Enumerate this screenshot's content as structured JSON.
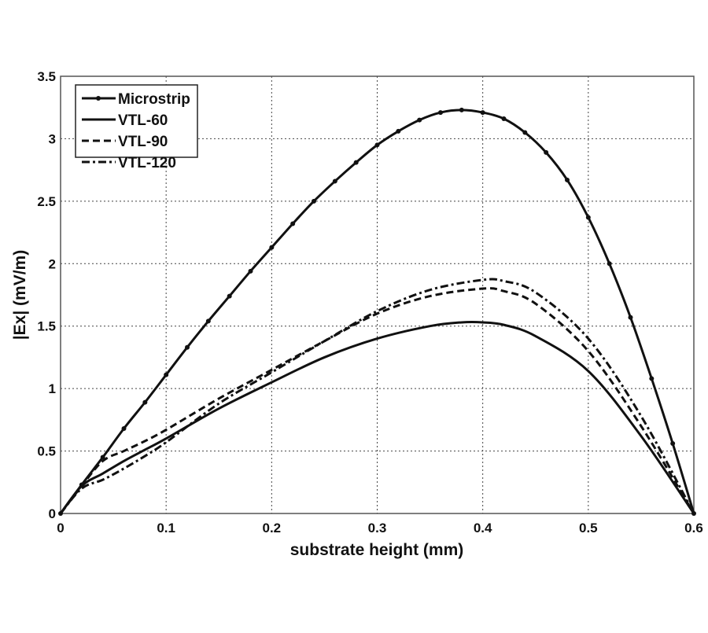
{
  "chart_data": {
    "type": "line",
    "title": "",
    "xlabel": "substrate height (mm)",
    "ylabel": "|Ex| (mV/m)",
    "xlim": [
      0,
      0.6
    ],
    "ylim": [
      0,
      3.5
    ],
    "xticks": [
      "0",
      "0.1",
      "0.2",
      "0.3",
      "0.4",
      "0.5",
      "0.6"
    ],
    "yticks": [
      "0",
      "0.5",
      "1",
      "1.5",
      "2",
      "2.5",
      "3",
      "3.5"
    ],
    "grid": true,
    "legend_position": "top-left",
    "series": [
      {
        "name": "Microstrip",
        "style": "solid-markers",
        "x": [
          0,
          0.02,
          0.04,
          0.06,
          0.08,
          0.1,
          0.12,
          0.14,
          0.16,
          0.18,
          0.2,
          0.22,
          0.24,
          0.26,
          0.28,
          0.3,
          0.32,
          0.34,
          0.36,
          0.38,
          0.4,
          0.42,
          0.44,
          0.46,
          0.48,
          0.5,
          0.52,
          0.54,
          0.56,
          0.58,
          0.6
        ],
        "y": [
          0,
          0.23,
          0.45,
          0.68,
          0.89,
          1.11,
          1.33,
          1.54,
          1.74,
          1.94,
          2.13,
          2.32,
          2.5,
          2.66,
          2.81,
          2.95,
          3.06,
          3.15,
          3.21,
          3.23,
          3.21,
          3.16,
          3.05,
          2.89,
          2.67,
          2.37,
          2.0,
          1.57,
          1.08,
          0.56,
          0
        ]
      },
      {
        "name": "VTL-60",
        "style": "solid",
        "x": [
          0,
          0.02,
          0.04,
          0.06,
          0.08,
          0.1,
          0.15,
          0.2,
          0.25,
          0.3,
          0.35,
          0.38,
          0.4,
          0.42,
          0.45,
          0.5,
          0.55,
          0.6
        ],
        "y": [
          0,
          0.22,
          0.32,
          0.42,
          0.51,
          0.6,
          0.84,
          1.05,
          1.25,
          1.4,
          1.5,
          1.53,
          1.53,
          1.51,
          1.42,
          1.14,
          0.62,
          0
        ]
      },
      {
        "name": "VTL-90",
        "style": "dashed",
        "x": [
          0,
          0.02,
          0.04,
          0.06,
          0.08,
          0.1,
          0.15,
          0.2,
          0.25,
          0.3,
          0.35,
          0.4,
          0.42,
          0.45,
          0.5,
          0.55,
          0.6
        ],
        "y": [
          0,
          0.22,
          0.42,
          0.5,
          0.58,
          0.67,
          0.92,
          1.15,
          1.38,
          1.6,
          1.74,
          1.8,
          1.78,
          1.68,
          1.3,
          0.7,
          0
        ]
      },
      {
        "name": "VTL-120",
        "style": "dashdot",
        "x": [
          0,
          0.02,
          0.04,
          0.06,
          0.08,
          0.1,
          0.15,
          0.2,
          0.25,
          0.3,
          0.35,
          0.4,
          0.42,
          0.45,
          0.5,
          0.55,
          0.6
        ],
        "y": [
          0,
          0.2,
          0.27,
          0.36,
          0.46,
          0.57,
          0.88,
          1.13,
          1.38,
          1.62,
          1.79,
          1.87,
          1.86,
          1.77,
          1.4,
          0.78,
          0
        ]
      }
    ]
  }
}
